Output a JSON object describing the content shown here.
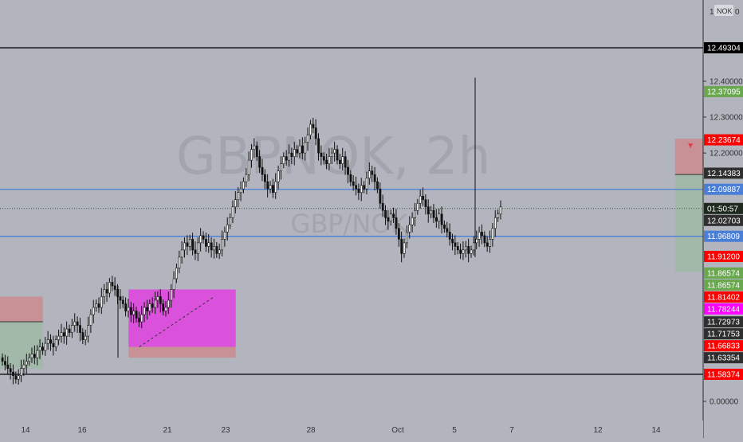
{
  "watermark": {
    "symbol": "GBPNOK, 2h",
    "pair": "GBP/NOK"
  },
  "price_axis": {
    "currency_label": "NOK",
    "top_label": "1",
    "top_label_suffix": "0",
    "ticks": [
      "12.40000",
      "12.30000",
      "12.20000",
      "0.00000"
    ],
    "badges": [
      {
        "text": "12.49304",
        "bg": "#000000",
        "fg": "#ffffff",
        "price": 12.49304
      },
      {
        "text": "12.37095",
        "bg": "#6aa84f",
        "fg": "#ffffff",
        "price": 12.37095
      },
      {
        "text": "12.23674",
        "bg": "#ff0000",
        "fg": "#ffffff",
        "price": 12.23674
      },
      {
        "text": "12.14383",
        "bg": "#2f2f2f",
        "fg": "#ffffff",
        "price": 12.14383
      },
      {
        "text": "12.09887",
        "bg": "#4a7fd8",
        "fg": "#ffffff",
        "price": 12.09887
      },
      {
        "text": "01:50:57",
        "bg": "#1f2a1f",
        "fg": "#ffffff",
        "price": 12.0455
      },
      {
        "text": "12.02703",
        "bg": "#2f2f2f",
        "fg": "#ffffff",
        "price": 12.02703
      },
      {
        "text": "11.96809",
        "bg": "#4a7fd8",
        "fg": "#ffffff",
        "price": 11.96809
      },
      {
        "text": "11.91200",
        "bg": "#ff0000",
        "fg": "#ffffff",
        "price": 11.912
      },
      {
        "text": "11.86574",
        "bg": "#6aa84f",
        "fg": "#ffffff",
        "price": 11.86574
      },
      {
        "text": "11.86574",
        "bg": "#6aa84f",
        "fg": "#ffffff",
        "price": 11.86574
      },
      {
        "text": "11.81402",
        "bg": "#ff0000",
        "fg": "#ffffff",
        "price": 11.81402
      },
      {
        "text": "11.78244",
        "bg": "#ff00ff",
        "fg": "#ffffff",
        "price": 11.78244
      },
      {
        "text": "11.72973",
        "bg": "#2f2f2f",
        "fg": "#ffffff",
        "price": 11.72973
      },
      {
        "text": "11.71753",
        "bg": "#2f2f2f",
        "fg": "#ffffff",
        "price": 11.71753
      },
      {
        "text": "11.66833",
        "bg": "#ff0000",
        "fg": "#ffffff",
        "price": 11.66833
      },
      {
        "text": "11.63354",
        "bg": "#2f2f2f",
        "fg": "#ffffff",
        "price": 11.63354
      },
      {
        "text": "11.58374",
        "bg": "#ff0000",
        "fg": "#ffffff",
        "price": 11.58374
      }
    ]
  },
  "time_axis": {
    "ticks": [
      {
        "label": "14",
        "date": "14"
      },
      {
        "label": "16",
        "date": "16"
      },
      {
        "label": "21",
        "date": "21"
      },
      {
        "label": "23",
        "date": "23"
      },
      {
        "label": "28",
        "date": "28"
      },
      {
        "label": "Oct",
        "date": "Oct"
      },
      {
        "label": "5",
        "date": "5"
      },
      {
        "label": "7",
        "date": "7"
      },
      {
        "label": "12",
        "date": "12"
      },
      {
        "label": "14",
        "date": "14"
      }
    ]
  },
  "chart_data": {
    "type": "candlestick",
    "symbol": "GBPNOK",
    "timeframe": "2h",
    "current_price": 12.0455,
    "countdown": "01:50:57",
    "horizontal_lines": [
      {
        "price": 12.49304,
        "color": "#000000"
      },
      {
        "price": 12.09887,
        "color": "#4a7fd8"
      },
      {
        "price": 11.96809,
        "color": "#4a7fd8"
      },
      {
        "price": 11.58374,
        "color": "#000000"
      }
    ],
    "price_range": [
      11.5,
      12.56
    ],
    "closes": [
      11.62,
      11.61,
      11.6,
      11.59,
      11.58,
      11.57,
      11.58,
      11.6,
      11.61,
      11.62,
      11.63,
      11.64,
      11.63,
      11.65,
      11.66,
      11.65,
      11.67,
      11.68,
      11.67,
      11.66,
      11.68,
      11.69,
      11.7,
      11.69,
      11.71,
      11.7,
      11.72,
      11.73,
      11.72,
      11.7,
      11.68,
      11.69,
      11.72,
      11.75,
      11.77,
      11.78,
      11.77,
      11.8,
      11.82,
      11.81,
      11.84,
      11.83,
      11.82,
      11.8,
      11.79,
      11.78,
      11.76,
      11.77,
      11.75,
      11.76,
      11.74,
      11.73,
      11.75,
      11.77,
      11.76,
      11.78,
      11.77,
      11.79,
      11.8,
      11.78,
      11.76,
      11.77,
      11.79,
      11.82,
      11.85,
      11.88,
      11.91,
      11.93,
      11.95,
      11.94,
      11.96,
      11.93,
      11.92,
      11.95,
      11.97,
      11.96,
      11.94,
      11.95,
      11.93,
      11.94,
      11.92,
      11.93,
      11.96,
      11.98,
      12.0,
      12.02,
      12.05,
      12.07,
      12.09,
      12.1,
      12.12,
      12.14,
      12.18,
      12.21,
      12.22,
      12.19,
      12.16,
      12.14,
      12.12,
      12.1,
      12.11,
      12.09,
      12.12,
      12.15,
      12.17,
      12.19,
      12.18,
      12.2,
      12.19,
      12.21,
      12.2,
      12.22,
      12.2,
      12.23,
      12.25,
      12.28,
      12.27,
      12.24,
      12.2,
      12.19,
      12.18,
      12.17,
      12.19,
      12.2,
      12.21,
      12.18,
      12.17,
      12.19,
      12.16,
      12.14,
      12.12,
      12.11,
      12.1,
      12.09,
      12.11,
      12.1,
      12.13,
      12.15,
      12.14,
      12.12,
      12.1,
      12.06,
      12.04,
      12.02,
      12.01,
      12.03,
      12.02,
      11.99,
      11.96,
      11.92,
      11.95,
      11.98,
      12.0,
      12.02,
      12.04,
      12.06,
      12.08,
      12.07,
      12.05,
      12.03,
      12.04,
      12.02,
      12.01,
      12.03,
      12.0,
      11.99,
      11.98,
      11.96,
      11.95,
      11.94,
      11.93,
      11.92,
      11.93,
      11.94,
      11.92,
      11.93,
      11.95,
      11.96,
      11.98,
      11.97,
      11.95,
      11.94,
      11.96,
      11.99,
      12.02,
      12.03,
      12.05
    ],
    "drawings": {
      "red_box_left": {
        "t": [
          0,
          4
        ],
        "p": [
          11.73,
          11.8
        ],
        "color": "#e06666"
      },
      "green_box_left": {
        "t": [
          0,
          4
        ],
        "p": [
          11.6,
          11.73
        ],
        "color": "#8fbc8f"
      },
      "magenta_box": {
        "t": [
          12,
          22
        ],
        "p": [
          11.66,
          11.82
        ],
        "color": "#e040e0"
      },
      "red_box_small": {
        "t": [
          12,
          22
        ],
        "p": [
          11.63,
          11.66
        ],
        "color": "#e06666"
      },
      "short_red": {
        "t": [
          63,
          88
        ],
        "p": [
          12.14,
          12.24
        ],
        "color": "#e06666"
      },
      "short_green": {
        "t": [
          63,
          88
        ],
        "p": [
          11.87,
          12.14
        ],
        "color": "#8fbc8f"
      },
      "long_green": {
        "t": [
          93,
          117
        ],
        "p": [
          12.045,
          12.37
        ],
        "color": "#8fbc8f"
      },
      "long_red": {
        "t": [
          93,
          117
        ],
        "p": [
          11.912,
          12.045
        ],
        "color": "#e06666"
      }
    }
  }
}
